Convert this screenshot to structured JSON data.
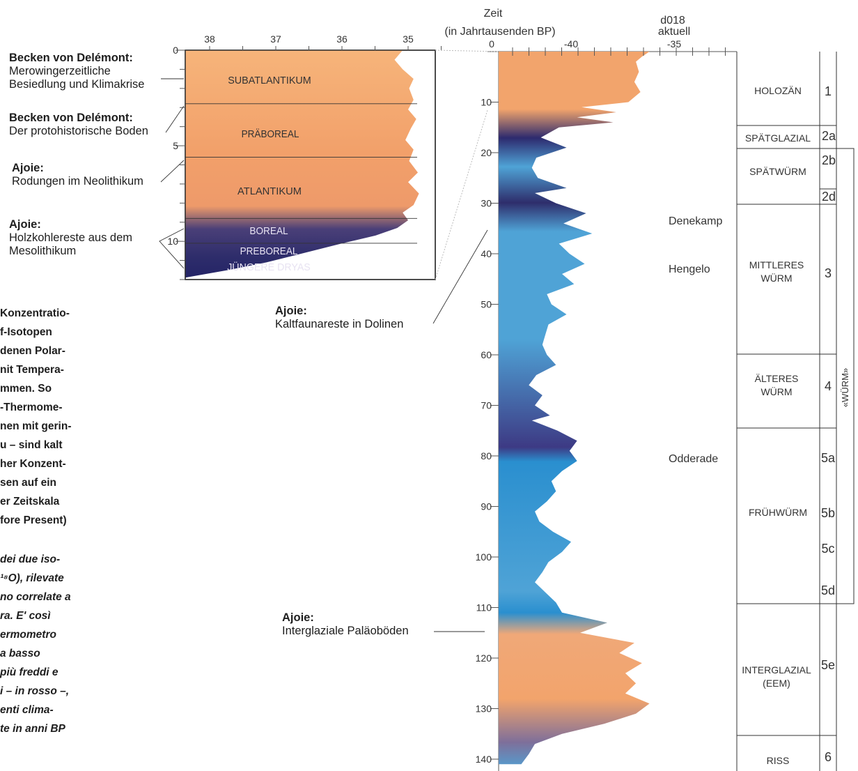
{
  "header": {
    "title_line1": "Zeit",
    "title_line2": "(in Jahrtausenden BP)",
    "ref_label_line1": "d018",
    "ref_label_line2": "aktuell"
  },
  "chart_data": [
    {
      "type": "area",
      "name": "main-core-profile",
      "x_axis": {
        "ticks": [
          "0",
          "-40",
          "-35"
        ],
        "range": [
          -44,
          -32
        ]
      },
      "y_axis": {
        "ticks": [
          "10",
          "20",
          "30",
          "40",
          "50",
          "60",
          "70",
          "80",
          "90",
          "100",
          "110",
          "120",
          "130",
          "140"
        ],
        "range": [
          0,
          141
        ],
        "unit": "Jahrtausende BP"
      },
      "profile_points": [
        {
          "t": 0,
          "v": -34.0
        },
        {
          "t": 1,
          "v": -34.5
        },
        {
          "t": 2,
          "v": -34.9
        },
        {
          "t": 4,
          "v": -34.7
        },
        {
          "t": 6,
          "v": -35.0
        },
        {
          "t": 8,
          "v": -34.6
        },
        {
          "t": 10,
          "v": -35.4
        },
        {
          "t": 11,
          "v": -38.5
        },
        {
          "t": 12,
          "v": -36.2
        },
        {
          "t": 13,
          "v": -38.8
        },
        {
          "t": 14,
          "v": -36.4
        },
        {
          "t": 15,
          "v": -40.0
        },
        {
          "t": 17,
          "v": -41.2
        },
        {
          "t": 19,
          "v": -39.5
        },
        {
          "t": 21,
          "v": -41.5
        },
        {
          "t": 23,
          "v": -41.8
        },
        {
          "t": 25,
          "v": -41.4
        },
        {
          "t": 27,
          "v": -39.5
        },
        {
          "t": 28,
          "v": -41.6
        },
        {
          "t": 30,
          "v": -40.2
        },
        {
          "t": 32,
          "v": -38.2
        },
        {
          "t": 34,
          "v": -39.7
        },
        {
          "t": 36,
          "v": -37.8
        },
        {
          "t": 38,
          "v": -40.0
        },
        {
          "t": 40,
          "v": -39.3
        },
        {
          "t": 42,
          "v": -38.3
        },
        {
          "t": 44,
          "v": -39.8
        },
        {
          "t": 46,
          "v": -39.0
        },
        {
          "t": 48,
          "v": -40.8
        },
        {
          "t": 50,
          "v": -40.5
        },
        {
          "t": 52,
          "v": -39.5
        },
        {
          "t": 54,
          "v": -40.7
        },
        {
          "t": 56,
          "v": -40.9
        },
        {
          "t": 58,
          "v": -41.1
        },
        {
          "t": 60,
          "v": -40.8
        },
        {
          "t": 62,
          "v": -40.2
        },
        {
          "t": 64,
          "v": -41.5
        },
        {
          "t": 66,
          "v": -42.0
        },
        {
          "t": 68,
          "v": -41.1
        },
        {
          "t": 70,
          "v": -41.6
        },
        {
          "t": 72,
          "v": -40.6
        },
        {
          "t": 73,
          "v": -41.8
        },
        {
          "t": 75,
          "v": -40.1
        },
        {
          "t": 77,
          "v": -38.8
        },
        {
          "t": 79,
          "v": -39.3
        },
        {
          "t": 81,
          "v": -38.8
        },
        {
          "t": 83,
          "v": -39.8
        },
        {
          "t": 85,
          "v": -40.5
        },
        {
          "t": 87,
          "v": -40.2
        },
        {
          "t": 89,
          "v": -40.8
        },
        {
          "t": 91,
          "v": -41.6
        },
        {
          "t": 93,
          "v": -41.3
        },
        {
          "t": 95,
          "v": -40.4
        },
        {
          "t": 97,
          "v": -39.2
        },
        {
          "t": 99,
          "v": -39.8
        },
        {
          "t": 101,
          "v": -40.7
        },
        {
          "t": 103,
          "v": -41.1
        },
        {
          "t": 105,
          "v": -41.6
        },
        {
          "t": 107,
          "v": -40.9
        },
        {
          "t": 109,
          "v": -40.2
        },
        {
          "t": 111,
          "v": -39.8
        },
        {
          "t": 113,
          "v": -36.8
        },
        {
          "t": 115,
          "v": -38.6
        },
        {
          "t": 117,
          "v": -35.0
        },
        {
          "t": 119,
          "v": -36.0
        },
        {
          "t": 121,
          "v": -34.5
        },
        {
          "t": 123,
          "v": -35.6
        },
        {
          "t": 125,
          "v": -34.9
        },
        {
          "t": 127,
          "v": -35.6
        },
        {
          "t": 129,
          "v": -34.0
        },
        {
          "t": 131,
          "v": -34.9
        },
        {
          "t": 133,
          "v": -37.0
        },
        {
          "t": 135,
          "v": -39.8
        },
        {
          "t": 137,
          "v": -41.6
        },
        {
          "t": 139,
          "v": -42.0
        },
        {
          "t": 141,
          "v": -42.5
        }
      ],
      "interstadials": [
        "Denekamp",
        "Hengelo",
        "Odderade"
      ]
    },
    {
      "type": "area",
      "name": "holocene-inset",
      "x_axis": {
        "ticks": [
          "38",
          "37",
          "36",
          "35"
        ],
        "range": [
          39.2,
          34.6
        ]
      },
      "y_axis": {
        "ticks": [
          "0",
          "5",
          "10"
        ],
        "range": [
          0,
          12
        ]
      },
      "profile_points": [
        {
          "t": 0,
          "v": 35.2
        },
        {
          "t": 0.5,
          "v": 35.35
        },
        {
          "t": 1.0,
          "v": 35.2
        },
        {
          "t": 1.5,
          "v": 35.0
        },
        {
          "t": 2.0,
          "v": 35.08
        },
        {
          "t": 2.6,
          "v": 35.0
        },
        {
          "t": 3.1,
          "v": 35.1
        },
        {
          "t": 3.6,
          "v": 34.95
        },
        {
          "t": 4.1,
          "v": 35.05
        },
        {
          "t": 4.7,
          "v": 35.15
        },
        {
          "t": 5.2,
          "v": 35.0
        },
        {
          "t": 5.8,
          "v": 35.08
        },
        {
          "t": 6.4,
          "v": 34.92
        },
        {
          "t": 6.9,
          "v": 35.1
        },
        {
          "t": 7.5,
          "v": 34.9
        },
        {
          "t": 8.1,
          "v": 35.0
        },
        {
          "t": 8.5,
          "v": 35.2
        },
        {
          "t": 8.9,
          "v": 35.1
        },
        {
          "t": 9.3,
          "v": 35.3
        },
        {
          "t": 9.7,
          "v": 35.7
        },
        {
          "t": 10.1,
          "v": 36.3
        },
        {
          "t": 10.6,
          "v": 37.0
        },
        {
          "t": 11.1,
          "v": 37.7
        },
        {
          "t": 11.5,
          "v": 38.4
        },
        {
          "t": 11.9,
          "v": 39.2
        }
      ],
      "periods": [
        "SUBATLANTIKUM",
        "PRÄBOREAL",
        "ATLANTIKUM",
        "BOREAL",
        "PREBOREAL",
        "JÜNGERE DRYAS"
      ]
    }
  ],
  "stages": [
    {
      "name": "HOLOZÄN",
      "num": "1"
    },
    {
      "name": "SPÄTGLAZIAL",
      "num": "2a"
    },
    {
      "name": "SPÄTWÜRM",
      "num": "2b"
    },
    {
      "name": "",
      "num": "2d"
    },
    {
      "name": "MITTLERES WÜRM",
      "num": "3"
    },
    {
      "name": "ÄLTERES WÜRM",
      "num": "4"
    },
    {
      "name": "FRÜHWÜRM",
      "num": "5a"
    },
    {
      "name": "",
      "num": "5b"
    },
    {
      "name": "",
      "num": "5c"
    },
    {
      "name": "",
      "num": "5d"
    },
    {
      "name": "INTERGLAZIAL (EEM)",
      "num": "5e"
    },
    {
      "name": "RISS",
      "num": "6"
    }
  ],
  "wurm_label": "«WÜRM»",
  "annotations": {
    "a1": {
      "title": "Becken von Delémont:",
      "line1": "Merowingerzeitliche",
      "line2": "Besiedlung und Klimakrise"
    },
    "a2": {
      "title": "Becken von Delémont:",
      "line1": "Der protohistorische Boden"
    },
    "a3": {
      "title": "Ajoie:",
      "line1": "Rodungen im Neolithikum"
    },
    "a4": {
      "title": "Ajoie:",
      "line1": "Holzkohlereste aus dem",
      "line2": "Mesolithikum"
    },
    "a5": {
      "title": "Ajoie:",
      "line1": "Kaltfaunareste in Dolinen"
    },
    "a6": {
      "title": "Ajoie:",
      "line1": "Interglaziale Paläoböden"
    }
  },
  "paragraph_de": [
    "Konzentratio-",
    "f-Isotopen",
    "denen Polar-",
    "nit Tempera-",
    "mmen. So",
    "-Thermome-",
    "nen mit gerin-",
    "u – sind kalt",
    "her Konzent-",
    "sen auf ein",
    "er Zeitskala",
    "fore Present)"
  ],
  "paragraph_it": [
    "dei due iso-",
    "¹⁸O), rilevate",
    "no correlate a",
    "ra. E' così",
    "ermometro",
    "a basso",
    "più freddi e",
    "i – in rosso –,",
    "enti clima-",
    "te in anni BP"
  ],
  "colors": {
    "warm": "#f2a46c",
    "cool": "#4fa3d6",
    "cold": "#2d2a6e",
    "frame": "#333333"
  }
}
